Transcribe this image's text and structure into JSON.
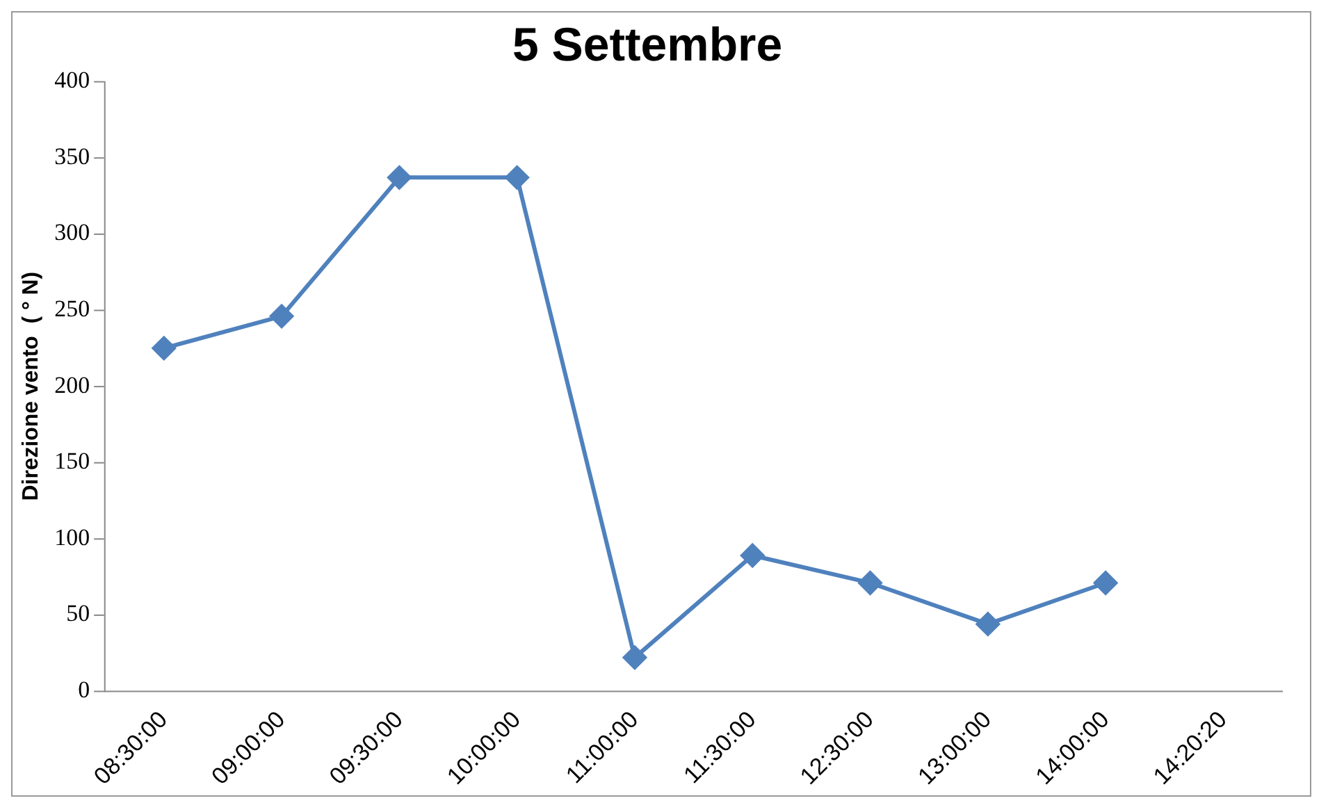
{
  "chart_data": {
    "type": "line",
    "title": "5 Settembre",
    "ylabel": "Direzione vento  ( ° N)",
    "categories": [
      "08:30:00",
      "09:00:00",
      "09:30:00",
      "10:00:00",
      "11:00:00",
      "11:30:00",
      "12:30:00",
      "13:00:00",
      "14:00:00",
      "14:20:20"
    ],
    "series": [
      {
        "color": "#4f81bd",
        "values": [
          225,
          246,
          337,
          337,
          22,
          89,
          71,
          44,
          71,
          null
        ]
      }
    ],
    "ylim": [
      0,
      400
    ],
    "yticks": [
      0,
      50,
      100,
      150,
      200,
      250,
      300,
      350,
      400
    ],
    "grid": false,
    "legend": false,
    "marker": "diamond",
    "line_style": "solid"
  }
}
